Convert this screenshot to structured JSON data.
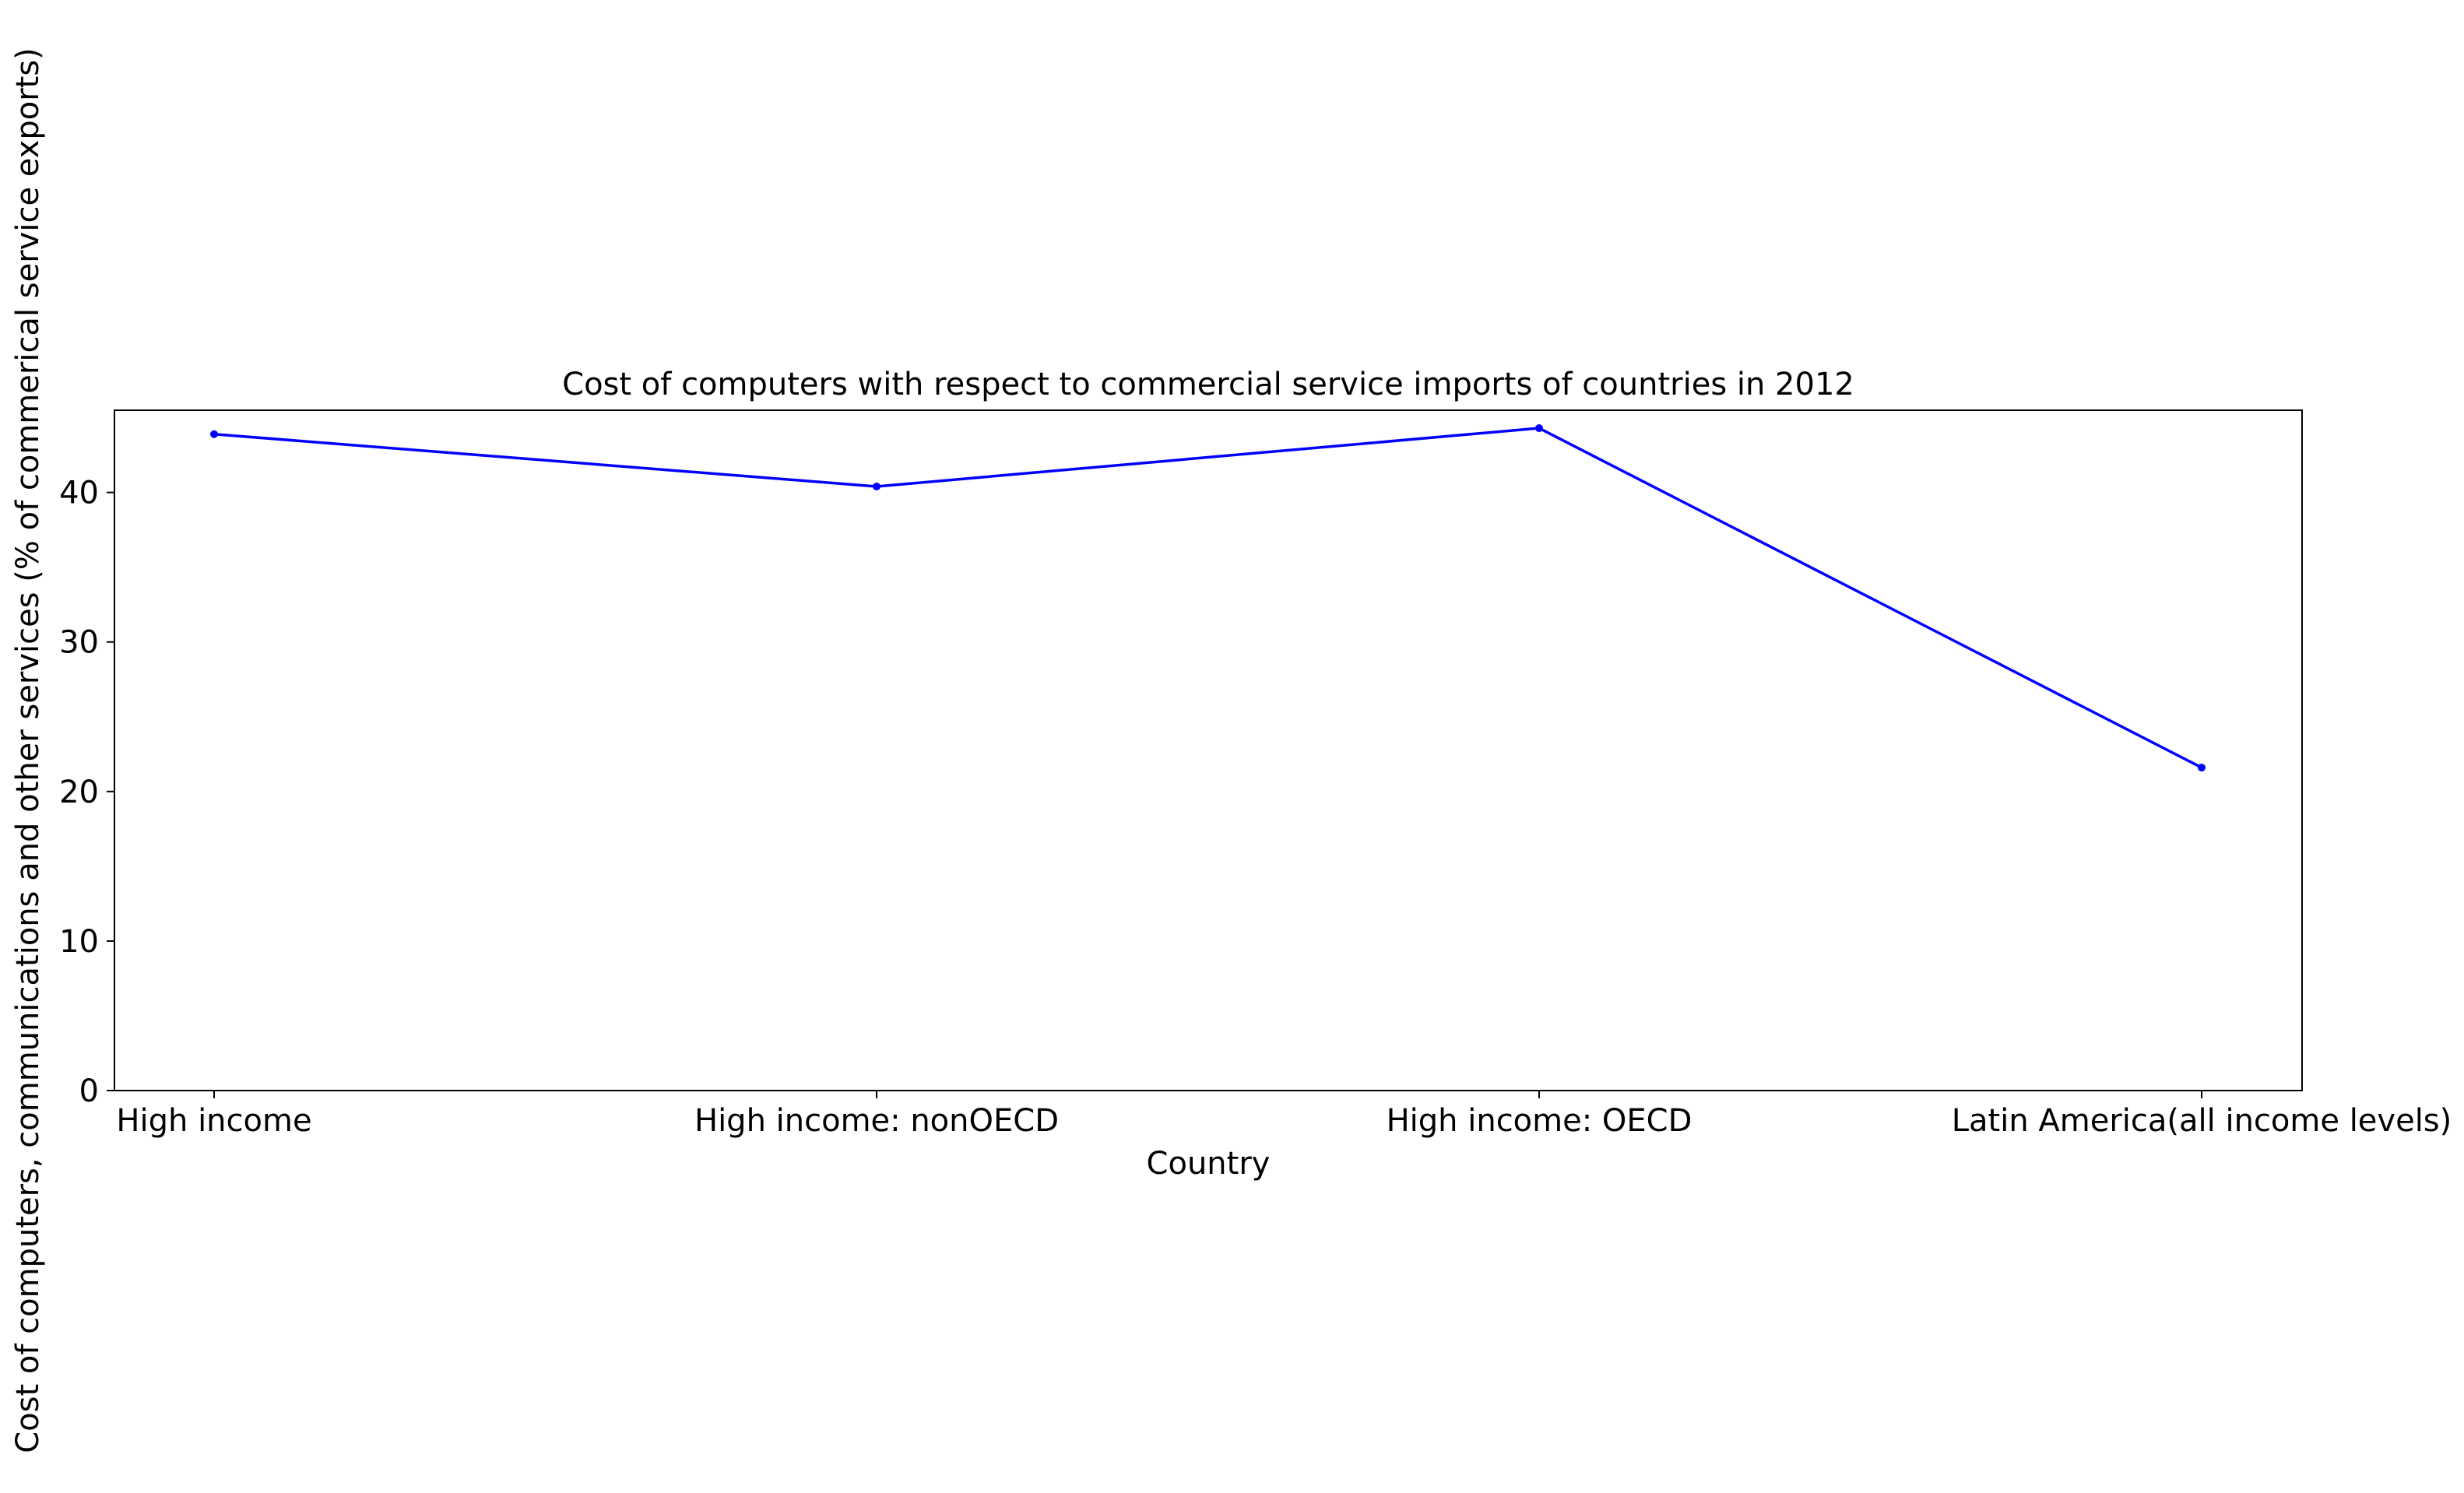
{
  "chart_data": {
    "type": "line",
    "title": "Cost of computers with respect to commercial service imports of countries in 2012",
    "xlabel": "Country",
    "ylabel": "Cost of computers, communications and other services (% of commerical service exports)",
    "categories": [
      "High income",
      "High income: nonOECD",
      "High income: OECD",
      "Latin America(all income levels)"
    ],
    "series": [
      {
        "values": [
          43.9,
          40.4,
          44.3,
          21.6
        ],
        "color": "#0000ff",
        "marker": "dot"
      }
    ],
    "yticks": [
      0,
      10,
      20,
      30,
      40
    ],
    "ytick_labels": [
      "0",
      "10",
      "20",
      "30",
      "40"
    ],
    "ylim": [
      0,
      45.5
    ],
    "grid": false,
    "legend": "none"
  }
}
